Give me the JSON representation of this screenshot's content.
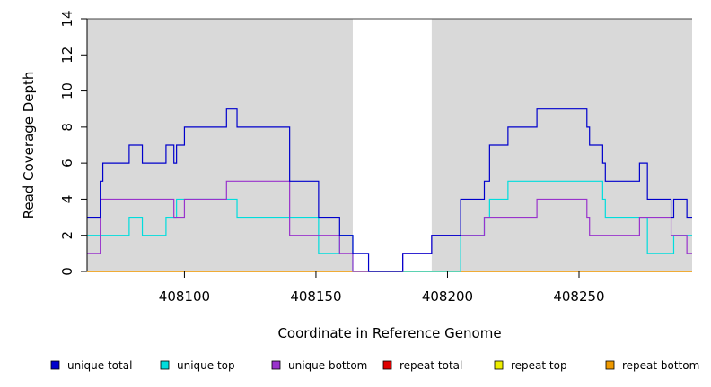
{
  "chart_data": {
    "type": "line",
    "title": "",
    "xlabel": "Coordinate in Reference Genome",
    "ylabel": "Read Coverage Depth",
    "xlim": [
      408063,
      408293
    ],
    "ylim": [
      0,
      14
    ],
    "x_ticks": [
      408100,
      408150,
      408200,
      408250
    ],
    "y_ticks": [
      0,
      2,
      4,
      6,
      8,
      10,
      12,
      14
    ],
    "shaded_regions": [
      {
        "x_start": 408063,
        "x_end": 408164
      },
      {
        "x_start": 408194,
        "x_end": 408293
      }
    ],
    "step": true,
    "legend_position": "bottom",
    "series": [
      {
        "name": "unique total",
        "color": "#0000cc",
        "points": [
          [
            408063,
            3
          ],
          [
            408068,
            3
          ],
          [
            408068,
            5
          ],
          [
            408069,
            5
          ],
          [
            408069,
            6
          ],
          [
            408079,
            6
          ],
          [
            408079,
            7
          ],
          [
            408084,
            7
          ],
          [
            408084,
            6
          ],
          [
            408093,
            6
          ],
          [
            408093,
            7
          ],
          [
            408096,
            7
          ],
          [
            408096,
            6
          ],
          [
            408097,
            6
          ],
          [
            408097,
            7
          ],
          [
            408100,
            7
          ],
          [
            408100,
            8
          ],
          [
            408116,
            8
          ],
          [
            408116,
            9
          ],
          [
            408120,
            9
          ],
          [
            408120,
            8
          ],
          [
            408140,
            8
          ],
          [
            408140,
            5
          ],
          [
            408151,
            5
          ],
          [
            408151,
            3
          ],
          [
            408159,
            3
          ],
          [
            408159,
            2
          ],
          [
            408164,
            2
          ],
          [
            408164,
            1
          ],
          [
            408170,
            1
          ],
          [
            408170,
            0
          ],
          [
            408183,
            0
          ],
          [
            408183,
            1
          ],
          [
            408194,
            1
          ],
          [
            408194,
            2
          ],
          [
            408205,
            2
          ],
          [
            408205,
            4
          ],
          [
            408214,
            4
          ],
          [
            408214,
            5
          ],
          [
            408216,
            5
          ],
          [
            408216,
            7
          ],
          [
            408223,
            7
          ],
          [
            408223,
            8
          ],
          [
            408234,
            8
          ],
          [
            408234,
            9
          ],
          [
            408253,
            9
          ],
          [
            408253,
            8
          ],
          [
            408254,
            8
          ],
          [
            408254,
            7
          ],
          [
            408259,
            7
          ],
          [
            408259,
            6
          ],
          [
            408260,
            6
          ],
          [
            408260,
            5
          ],
          [
            408273,
            5
          ],
          [
            408273,
            6
          ],
          [
            408276,
            6
          ],
          [
            408276,
            4
          ],
          [
            408285,
            4
          ],
          [
            408285,
            3
          ],
          [
            408286,
            3
          ],
          [
            408286,
            4
          ],
          [
            408291,
            4
          ],
          [
            408291,
            3
          ],
          [
            408293,
            3
          ]
        ]
      },
      {
        "name": "unique top",
        "color": "#00dddd",
        "points": [
          [
            408063,
            2
          ],
          [
            408079,
            2
          ],
          [
            408079,
            3
          ],
          [
            408084,
            3
          ],
          [
            408084,
            2
          ],
          [
            408093,
            2
          ],
          [
            408093,
            3
          ],
          [
            408097,
            3
          ],
          [
            408097,
            4
          ],
          [
            408120,
            4
          ],
          [
            408120,
            3
          ],
          [
            408151,
            3
          ],
          [
            408151,
            1
          ],
          [
            408159,
            1
          ],
          [
            408159,
            2
          ],
          [
            408164,
            2
          ],
          [
            408164,
            0
          ],
          [
            408205,
            0
          ],
          [
            408205,
            2
          ],
          [
            408214,
            2
          ],
          [
            408214,
            3
          ],
          [
            408216,
            3
          ],
          [
            408216,
            4
          ],
          [
            408223,
            4
          ],
          [
            408223,
            5
          ],
          [
            408259,
            5
          ],
          [
            408259,
            4
          ],
          [
            408260,
            4
          ],
          [
            408260,
            3
          ],
          [
            408276,
            3
          ],
          [
            408276,
            1
          ],
          [
            408286,
            1
          ],
          [
            408286,
            2
          ],
          [
            408293,
            2
          ]
        ]
      },
      {
        "name": "unique bottom",
        "color": "#9933cc",
        "points": [
          [
            408063,
            1
          ],
          [
            408068,
            1
          ],
          [
            408068,
            4
          ],
          [
            408096,
            4
          ],
          [
            408096,
            3
          ],
          [
            408100,
            3
          ],
          [
            408100,
            4
          ],
          [
            408116,
            4
          ],
          [
            408116,
            5
          ],
          [
            408140,
            5
          ],
          [
            408140,
            2
          ],
          [
            408159,
            2
          ],
          [
            408159,
            1
          ],
          [
            408164,
            1
          ],
          [
            408164,
            0
          ],
          [
            408183,
            0
          ],
          [
            408183,
            1
          ],
          [
            408194,
            1
          ],
          [
            408194,
            2
          ],
          [
            408214,
            2
          ],
          [
            408214,
            3
          ],
          [
            408234,
            3
          ],
          [
            408234,
            4
          ],
          [
            408253,
            4
          ],
          [
            408253,
            3
          ],
          [
            408254,
            3
          ],
          [
            408254,
            2
          ],
          [
            408273,
            2
          ],
          [
            408273,
            3
          ],
          [
            408285,
            3
          ],
          [
            408285,
            2
          ],
          [
            408291,
            2
          ],
          [
            408291,
            1
          ],
          [
            408293,
            1
          ]
        ]
      },
      {
        "name": "repeat total",
        "color": "#dd0000",
        "points": [
          [
            408063,
            0
          ],
          [
            408293,
            0
          ]
        ]
      },
      {
        "name": "repeat top",
        "color": "#eeee00",
        "points": [
          [
            408063,
            0
          ],
          [
            408293,
            0
          ]
        ]
      },
      {
        "name": "repeat bottom",
        "color": "#ee9900",
        "points": [
          [
            408063,
            0
          ],
          [
            408293,
            0
          ]
        ]
      }
    ]
  }
}
